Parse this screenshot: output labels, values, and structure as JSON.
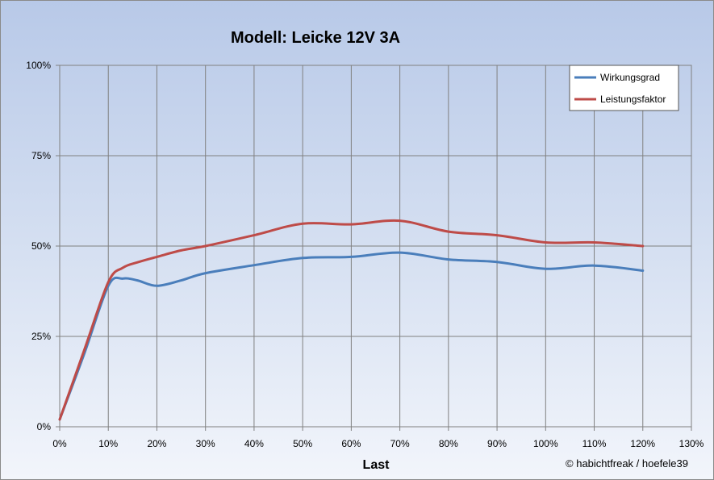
{
  "chart_data": {
    "type": "line",
    "title": "Modell: Leicke  12V  3A",
    "xlabel": "Last",
    "ylabel": "",
    "x_ticks": [
      "0%",
      "10%",
      "20%",
      "30%",
      "40%",
      "50%",
      "60%",
      "70%",
      "80%",
      "90%",
      "100%",
      "110%",
      "120%",
      "130%"
    ],
    "y_ticks": [
      "0%",
      "25%",
      "50%",
      "75%",
      "100%"
    ],
    "xlim": [
      0,
      130
    ],
    "ylim": [
      0,
      100
    ],
    "grid": true,
    "legend_position": "top-right",
    "series": [
      {
        "name": "Wirkungsgrad",
        "color": "#4a7ebb",
        "x": [
          0,
          5,
          10,
          13,
          16,
          20,
          25,
          30,
          40,
          50,
          60,
          70,
          80,
          90,
          100,
          110,
          120
        ],
        "values": [
          2,
          20,
          39,
          41,
          40.5,
          39,
          40.5,
          42.5,
          44.7,
          46.7,
          47,
          48.2,
          46.3,
          45.6,
          43.7,
          44.6,
          43.2
        ]
      },
      {
        "name": "Leistungsfaktor",
        "color": "#be4b48",
        "x": [
          0,
          5,
          10,
          13,
          16,
          20,
          25,
          30,
          40,
          50,
          60,
          70,
          80,
          90,
          100,
          110,
          120
        ],
        "values": [
          2,
          21,
          40,
          44,
          45.5,
          47,
          48.8,
          50,
          53,
          56.2,
          56,
          57,
          54,
          53,
          51,
          51,
          50
        ]
      }
    ],
    "credit": "© habichtfreak  /  hoefele39"
  }
}
